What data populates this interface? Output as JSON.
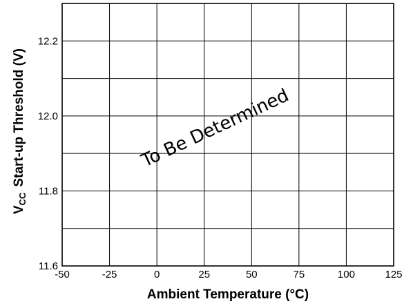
{
  "chart_data": {
    "type": "line",
    "x_ticks": [
      -50,
      -25,
      0,
      25,
      50,
      75,
      100,
      125
    ],
    "y_ticks_labeled": [
      "12.2",
      "12.0",
      "11.8",
      "11.6"
    ],
    "xlim": [
      -50,
      125
    ],
    "ylim": [
      11.6,
      12.3
    ],
    "grid": true,
    "series": [],
    "xlabel": "Ambient Temperature (°C)",
    "ylabel": {
      "v": "V",
      "sub": "CC",
      "rest": "Start-up Threshold (V)"
    },
    "annotation": "To Be Determined"
  }
}
